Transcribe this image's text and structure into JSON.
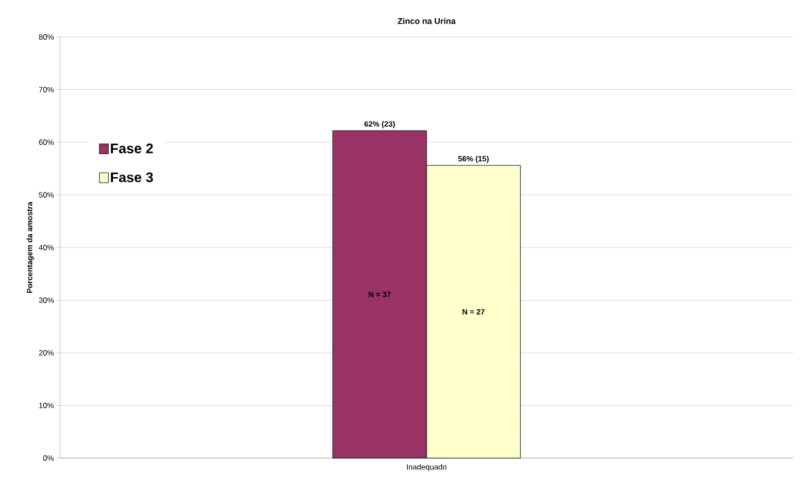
{
  "chart_data": {
    "type": "bar",
    "title": "Zinco na Urina",
    "ylabel": "Porcentagem da amostra",
    "categories": [
      "Inadequado"
    ],
    "series": [
      {
        "name": "Fase 2",
        "color": "#993366",
        "values": [
          62.2
        ],
        "value_labels": [
          "62% (23)"
        ]
      },
      {
        "name": "Fase 3",
        "color": "#ffffcc",
        "values": [
          55.6
        ],
        "value_labels": [
          "56% (15)"
        ]
      }
    ],
    "annotations": [
      "N = 37",
      "N = 27"
    ],
    "ylim": [
      0,
      80
    ],
    "yticks": [
      {
        "value": 0,
        "label": "0%"
      },
      {
        "value": 10,
        "label": "10%"
      },
      {
        "value": 20,
        "label": "20%"
      },
      {
        "value": 30,
        "label": "30%"
      },
      {
        "value": 40,
        "label": "40%"
      },
      {
        "value": 50,
        "label": "50%"
      },
      {
        "value": 60,
        "label": "60%"
      },
      {
        "value": 70,
        "label": "70%"
      },
      {
        "value": 80,
        "label": "80%"
      }
    ],
    "grid": "y",
    "legend": "left"
  }
}
